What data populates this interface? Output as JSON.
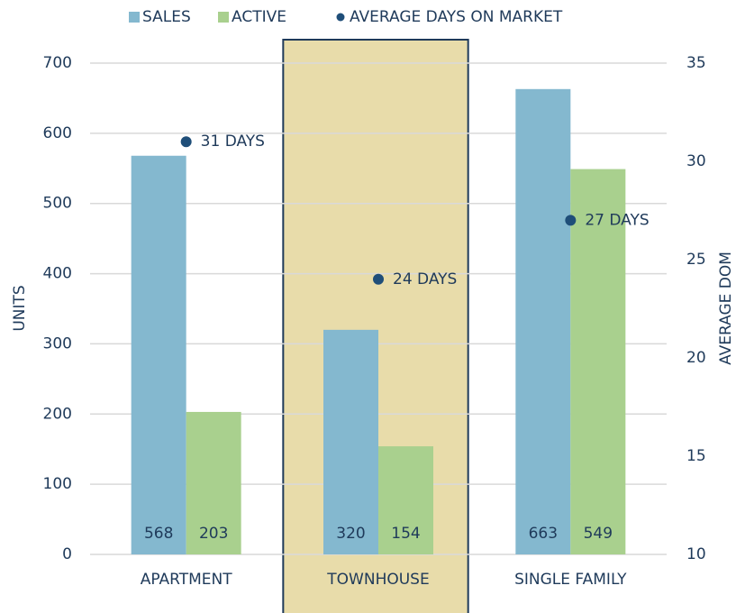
{
  "chart_data": {
    "type": "bar",
    "categories": [
      "APARTMENT",
      "TOWNHOUSE",
      "SINGLE FAMILY"
    ],
    "series": [
      {
        "name": "SALES",
        "color": "#84b8cf",
        "values": [
          568,
          320,
          663
        ]
      },
      {
        "name": "ACTIVE",
        "color": "#a9d08e",
        "values": [
          203,
          154,
          549
        ]
      },
      {
        "name": "AVERAGE DAYS ON MARKET",
        "color": "#1f4e79",
        "axis": "y2",
        "values": [
          31,
          24,
          27
        ],
        "value_labels": [
          "31 DAYS",
          "24 DAYS",
          "27 DAYS"
        ]
      }
    ],
    "ylabel": "UNITS",
    "y2label": "AVERAGE DOM",
    "ylim": [
      0,
      700
    ],
    "yticks": [
      0,
      100,
      200,
      300,
      400,
      500,
      600,
      700
    ],
    "y2lim": [
      10,
      35
    ],
    "y2ticks": [
      10,
      15,
      20,
      25,
      30,
      35
    ],
    "grid": true,
    "legend": "top",
    "highlight": 1
  }
}
